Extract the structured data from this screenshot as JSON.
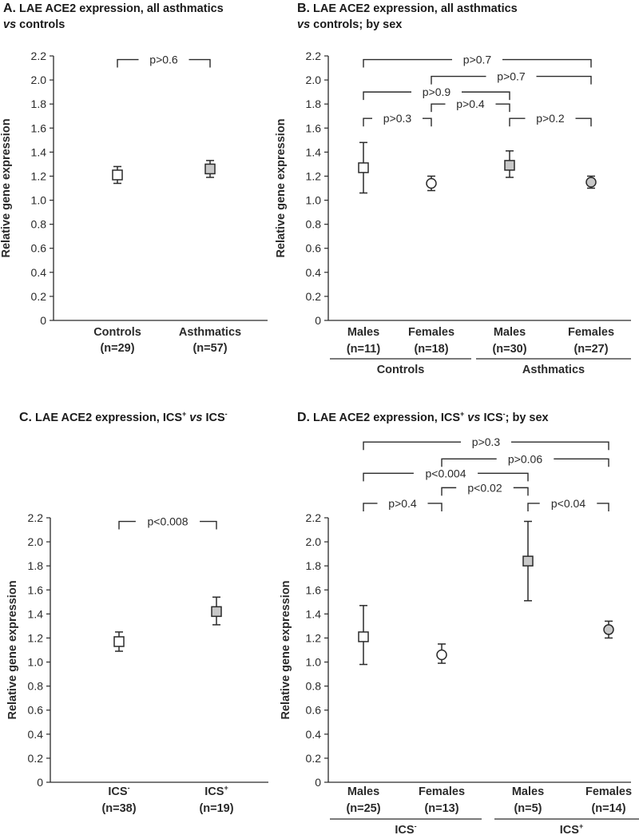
{
  "panels": {
    "A": {
      "letter": "A.",
      "title_line1": "LAE ACE2 expression, all asthmatics",
      "title_line2_italic": "vs",
      "title_line2": " controls"
    },
    "B": {
      "letter": "B.",
      "title_line1": "LAE ACE2 expression, all asthmatics",
      "title_line2_italic": "vs",
      "title_line2": " controls; by sex"
    },
    "C": {
      "letter": "C.",
      "t1": "LAE ACE2 expression, ICS",
      "sup1": "+",
      "italic": " vs ",
      "t2": "ICS",
      "sup2": "-"
    },
    "D": {
      "letter": "D.",
      "t1": "LAE ACE2 expression, ICS",
      "sup1": "+",
      "italic": " vs ",
      "t2": "ICS",
      "sup2": "-",
      "t3": "; by sex"
    }
  },
  "chart_data": [
    {
      "id": "A",
      "type": "scatter",
      "ylabel": "Relative gene expression",
      "ylim": [
        0,
        2.2
      ],
      "yticks": [
        "0",
        "0.2",
        "0.4",
        "0.6",
        "0.8",
        "1.0",
        "1.2",
        "1.4",
        "1.6",
        "1.8",
        "2.0",
        "2.2"
      ],
      "points": [
        {
          "label": "Controls",
          "n": "(n=29)",
          "mean": 1.21,
          "low": 1.14,
          "high": 1.28,
          "marker": "square",
          "fill": "#ffffff"
        },
        {
          "label": "Asthmatics",
          "n": "(n=57)",
          "mean": 1.26,
          "low": 1.19,
          "high": 1.33,
          "marker": "square",
          "fill": "#c8c8c8"
        }
      ],
      "comparisons": [
        {
          "from": 0,
          "to": 1,
          "text": "p>0.6",
          "y": 2.17
        }
      ],
      "groups": []
    },
    {
      "id": "B",
      "type": "scatter",
      "ylabel": "Relative gene expression",
      "ylim": [
        0,
        2.2
      ],
      "yticks": [
        "0",
        "0.2",
        "0.4",
        "0.6",
        "0.8",
        "1.0",
        "1.2",
        "1.4",
        "1.6",
        "1.8",
        "2.0",
        "2.2"
      ],
      "points": [
        {
          "label": "Males",
          "n": "(n=11)",
          "mean": 1.27,
          "low": 1.06,
          "high": 1.48,
          "marker": "square",
          "fill": "#ffffff"
        },
        {
          "label": "Females",
          "n": "(n=18)",
          "mean": 1.14,
          "low": 1.08,
          "high": 1.2,
          "marker": "circle",
          "fill": "#ffffff"
        },
        {
          "label": "Males",
          "n": "(n=30)",
          "mean": 1.29,
          "low": 1.19,
          "high": 1.41,
          "marker": "square",
          "fill": "#c8c8c8"
        },
        {
          "label": "Females",
          "n": "(n=27)",
          "mean": 1.15,
          "low": 1.1,
          "high": 1.2,
          "marker": "circle",
          "fill": "#c8c8c8"
        }
      ],
      "comparisons": [
        {
          "from": 0,
          "to": 3,
          "text": "p>0.7",
          "y": 2.17
        },
        {
          "from": 1,
          "to": 3,
          "text": "p>0.7",
          "y": 2.03
        },
        {
          "from": 0,
          "to": 2,
          "text": "p>0.9",
          "y": 1.9
        },
        {
          "from": 1,
          "to": 2,
          "text": "p>0.4",
          "y": 1.8
        },
        {
          "from": 0,
          "to": 1,
          "text": "p>0.3",
          "y": 1.68
        },
        {
          "from": 2,
          "to": 3,
          "text": "p>0.2",
          "y": 1.68
        }
      ],
      "groups": [
        {
          "label": "Controls",
          "from": 0,
          "to": 1
        },
        {
          "label": "Asthmatics",
          "from": 2,
          "to": 3
        }
      ]
    },
    {
      "id": "C",
      "type": "scatter",
      "ylabel": "Relative gene expression",
      "ylim": [
        0,
        2.2
      ],
      "yticks": [
        "0",
        "0.2",
        "0.4",
        "0.6",
        "0.8",
        "1.0",
        "1.2",
        "1.4",
        "1.6",
        "1.8",
        "2.0",
        "2.2"
      ],
      "points": [
        {
          "label": "ICS",
          "sup": "-",
          "n": "(n=38)",
          "mean": 1.17,
          "low": 1.09,
          "high": 1.25,
          "marker": "square",
          "fill": "#ffffff"
        },
        {
          "label": "ICS",
          "sup": "+",
          "n": "(n=19)",
          "mean": 1.42,
          "low": 1.31,
          "high": 1.54,
          "marker": "square",
          "fill": "#c8c8c8"
        }
      ],
      "comparisons": [
        {
          "from": 0,
          "to": 1,
          "text": "p<0.008",
          "y": 2.17
        }
      ],
      "groups": []
    },
    {
      "id": "D",
      "type": "scatter",
      "ylabel": "Relative gene expression",
      "ylim": [
        0,
        2.2
      ],
      "yticks": [
        "0",
        "0.2",
        "0.4",
        "0.6",
        "0.8",
        "1.0",
        "1.2",
        "1.4",
        "1.6",
        "1.8",
        "2.0",
        "2.2"
      ],
      "points": [
        {
          "label": "Males",
          "n": "(n=25)",
          "mean": 1.21,
          "low": 0.98,
          "high": 1.47,
          "marker": "square",
          "fill": "#ffffff"
        },
        {
          "label": "Females",
          "n": "(n=13)",
          "mean": 1.06,
          "low": 0.99,
          "high": 1.15,
          "marker": "circle",
          "fill": "#ffffff"
        },
        {
          "label": "Males",
          "n": "(n=5)",
          "mean": 1.84,
          "low": 1.51,
          "high": 2.17,
          "marker": "square",
          "fill": "#c8c8c8"
        },
        {
          "label": "Females",
          "n": "(n=14)",
          "mean": 1.27,
          "low": 1.2,
          "high": 1.34,
          "marker": "circle",
          "fill": "#c8c8c8"
        }
      ],
      "comparisons": [
        {
          "from": 0,
          "to": 3,
          "text": "p>0.3",
          "y": 2.83
        },
        {
          "from": 1,
          "to": 3,
          "text": "p>0.06",
          "y": 2.69
        },
        {
          "from": 0,
          "to": 2,
          "text": "p<0.004",
          "y": 2.57
        },
        {
          "from": 1,
          "to": 2,
          "text": "p<0.02",
          "y": 2.45
        },
        {
          "from": 0,
          "to": 1,
          "text": "p>0.4",
          "y": 2.32
        },
        {
          "from": 2,
          "to": 3,
          "text": "p<0.04",
          "y": 2.32
        }
      ],
      "groups": [
        {
          "label": "ICS",
          "sup": "-",
          "from": 0,
          "to": 1
        },
        {
          "label": "ICS",
          "sup": "+",
          "from": 2,
          "to": 3
        }
      ]
    }
  ]
}
